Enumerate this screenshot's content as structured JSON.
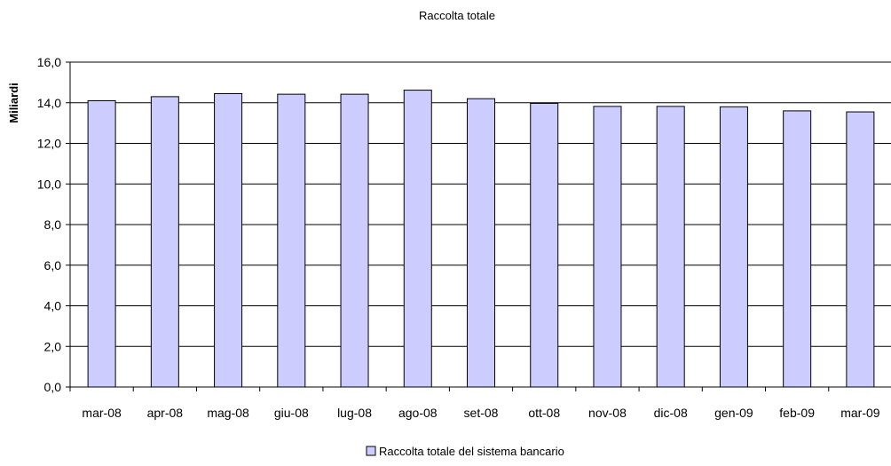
{
  "chart_data": {
    "type": "bar",
    "title": "Raccolta totale",
    "xlabel": "",
    "ylabel": "Miliardi",
    "categories": [
      "mar-08",
      "apr-08",
      "mag-08",
      "giu-08",
      "lug-08",
      "ago-08",
      "set-08",
      "ott-08",
      "nov-08",
      "dic-08",
      "gen-09",
      "feb-09",
      "mar-09"
    ],
    "series": [
      {
        "name": "Raccolta totale del sistema bancario",
        "values": [
          14.1,
          14.3,
          14.45,
          14.42,
          14.42,
          14.62,
          14.2,
          13.97,
          13.82,
          13.82,
          13.8,
          13.6,
          13.55
        ]
      }
    ],
    "ylim": [
      0,
      16
    ],
    "yticks": [
      "0,0",
      "2,0",
      "4,0",
      "6,0",
      "8,0",
      "10,0",
      "12,0",
      "14,0",
      "16,0"
    ],
    "grid": true,
    "legend_position": "bottom",
    "colors": {
      "bar_fill": "#ccccff",
      "bar_stroke": "#000000",
      "grid": "#000000"
    }
  }
}
